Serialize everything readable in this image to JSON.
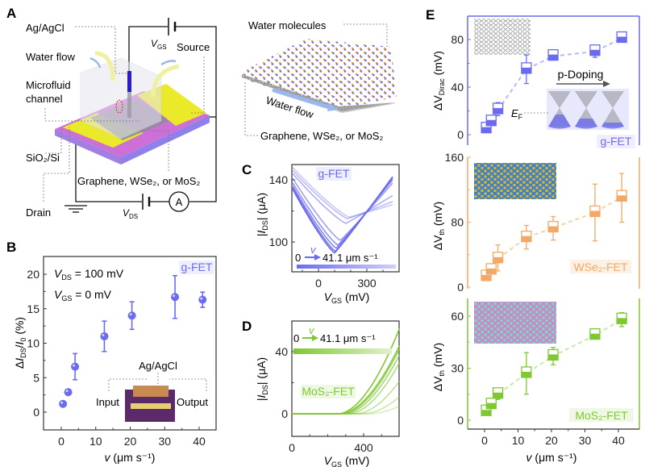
{
  "panels": {
    "A": {
      "letter": "A",
      "labels": {
        "agagcl": "Ag/AgCl",
        "water_flow": "Water flow",
        "microfluid": "Microfluid",
        "channel": "channel",
        "sio2": "SiO₂/Si",
        "drain": "Drain",
        "source": "Source",
        "vgs_v": "V",
        "vgs_sub": "GS",
        "vds_v": "V",
        "vds_sub": "DS",
        "material": "Graphene, WSe₂, or MoS₂",
        "ammeter": "A",
        "water_molecules": "Water molecules",
        "water_flow_2": "Water flow",
        "material_2": "Graphene, WSe₂, or MoS₂"
      }
    }
  },
  "colors": {
    "g_fet": "#6b6bef",
    "wse2_fet": "#f2a866",
    "mos2_fet": "#7ec832",
    "axis": "#333333"
  },
  "chart_data": [
    {
      "id": "B",
      "letter": "B",
      "type": "scatter",
      "title": "",
      "xlabel_v": "v",
      "xlabel_rest": " (μm s⁻¹)",
      "ylabel": "ΔI_DS/I_0 (%)",
      "ylabel_parts": [
        "Δ",
        "I",
        "DS",
        "/",
        "I",
        "0",
        " (%)"
      ],
      "xlim": [
        -4,
        45
      ],
      "ylim": [
        -2.5,
        22.5
      ],
      "xticks": [
        0,
        10,
        20,
        30,
        40
      ],
      "yticks": [
        0,
        5,
        10,
        15,
        20
      ],
      "legend": "g-FET",
      "annotations": {
        "vds_label": "V",
        "vds_sub": "DS",
        "vds_val": " = 100 mV",
        "vgs_label": "V",
        "vgs_sub": "GS",
        "vgs_val": " = 0 mV",
        "inset_agagcl": "Ag/AgCl",
        "inset_input": "Input",
        "inset_output": "Output"
      },
      "series": [
        {
          "name": "g-FET",
          "x": [
            0.5,
            2,
            4,
            12.5,
            20.5,
            33,
            41
          ],
          "y": [
            1.2,
            2.9,
            6.6,
            11.0,
            14.0,
            16.7,
            16.3
          ],
          "err": [
            0,
            0,
            1.9,
            2.2,
            2.0,
            3.1,
            1.1
          ]
        }
      ]
    },
    {
      "id": "C",
      "letter": "C",
      "type": "line",
      "xlabel": "V_GS (mV)",
      "ylabel": "|I_DS| (μA)",
      "xlim": [
        -160,
        460
      ],
      "ylim": [
        77,
        150
      ],
      "xticks": [
        0,
        300
      ],
      "yticks": [
        100,
        140
      ],
      "legend": "g-FET",
      "gradient_label": {
        "start": "0",
        "v": "v",
        "end": "41.1 μm s⁻¹"
      },
      "series_note": "Transfer curves from v = 0 (dark) to 41.1 μm s⁻¹ (light)",
      "series": [
        {
          "name": "v1",
          "dirac_x": 100,
          "min_y": 93,
          "left_y": 134,
          "right_y": 142
        },
        {
          "name": "v2",
          "dirac_x": 105,
          "min_y": 94,
          "left_y": 135,
          "right_y": 142
        },
        {
          "name": "v3",
          "dirac_x": 110,
          "min_y": 96,
          "left_y": 136,
          "right_y": 141
        },
        {
          "name": "v4",
          "dirac_x": 120,
          "min_y": 98,
          "left_y": 138,
          "right_y": 140
        },
        {
          "name": "v5",
          "dirac_x": 135,
          "min_y": 101,
          "left_y": 141,
          "right_y": 138
        },
        {
          "name": "v6",
          "dirac_x": 170,
          "min_y": 112,
          "left_y": 144,
          "right_y": 130
        },
        {
          "name": "v7",
          "dirac_x": 180,
          "min_y": 115,
          "left_y": 146,
          "right_y": 126
        },
        {
          "name": "v8",
          "dirac_x": 190,
          "min_y": 116,
          "left_y": 148,
          "right_y": 124
        }
      ]
    },
    {
      "id": "D",
      "letter": "D",
      "type": "line",
      "xlabel": "V_GS (mV)",
      "ylabel": "|I_DS| (μA)",
      "xlim": [
        0,
        600
      ],
      "ylim": [
        -10,
        57
      ],
      "xticks": [
        0,
        400
      ],
      "yticks": [
        0,
        40
      ],
      "legend": "MoS₂-FET",
      "gradient_label": {
        "start": "0",
        "v": "v",
        "end": "41.1 μm s⁻¹"
      },
      "series_note": "Transfer curves from v = 0 (dark) to 41.1 μm s⁻¹ (light)",
      "series": [
        {
          "name": "v1",
          "vth": 260,
          "i_max": 55
        },
        {
          "name": "v2",
          "vth": 270,
          "i_max": 44
        },
        {
          "name": "v3",
          "vth": 280,
          "i_max": 42
        },
        {
          "name": "v4",
          "vth": 295,
          "i_max": 38
        },
        {
          "name": "v5",
          "vth": 320,
          "i_max": 33
        },
        {
          "name": "v6",
          "vth": 360,
          "i_max": 21
        },
        {
          "name": "v7",
          "vth": 400,
          "i_max": 11
        },
        {
          "name": "v8",
          "vth": 430,
          "i_max": 5
        }
      ]
    },
    {
      "id": "E1",
      "letter": "E",
      "type": "box",
      "ylabel_parts": [
        "ΔV",
        "Dirac",
        " (mV)"
      ],
      "xlim": [
        -4,
        45
      ],
      "ylim": [
        -5,
        100
      ],
      "yticks": [
        0,
        40,
        80
      ],
      "legend": "g-FET",
      "inset_labels": {
        "p_doping": "p-Doping",
        "ef": "E",
        "ef_sub": "F"
      },
      "series": [
        {
          "name": "g-FET",
          "x": [
            0.5,
            2,
            4,
            12.5,
            20.5,
            33,
            41
          ],
          "y": [
            5,
            11,
            21,
            55,
            66,
            70,
            81
          ],
          "lo": [
            3,
            8,
            16,
            43,
            64,
            65,
            79
          ],
          "hi": [
            8,
            15,
            27,
            67,
            69,
            75,
            84
          ]
        }
      ]
    },
    {
      "id": "E2",
      "type": "box",
      "ylabel_parts": [
        "ΔV",
        "th",
        " (mV)"
      ],
      "xlim": [
        -4,
        45
      ],
      "ylim": [
        -8,
        168
      ],
      "yticks": [
        0,
        80,
        160
      ],
      "legend": "WSe₂-FET",
      "series": [
        {
          "name": "WSe₂-FET",
          "x": [
            0.5,
            2,
            4,
            12.5,
            20.5,
            33,
            41
          ],
          "y": [
            13,
            21,
            35,
            61,
            73,
            92,
            111
          ],
          "lo": [
            9,
            17,
            20,
            47,
            58,
            57,
            80
          ],
          "hi": [
            17,
            25,
            52,
            76,
            87,
            127,
            140
          ]
        }
      ]
    },
    {
      "id": "E3",
      "type": "box",
      "xlabel_v": "v",
      "xlabel_rest": " (μm s⁻¹)",
      "ylabel_parts": [
        "ΔV",
        "th",
        " (mV)"
      ],
      "xlim": [
        -4,
        45
      ],
      "ylim": [
        -5,
        70
      ],
      "xticks": [
        0,
        10,
        20,
        30,
        40
      ],
      "yticks": [
        0,
        30,
        60
      ],
      "legend": "MoS₂-FET",
      "series": [
        {
          "name": "MoS₂-FET",
          "x": [
            0.5,
            2,
            4,
            12.5,
            20.5,
            33,
            41
          ],
          "y": [
            5,
            9,
            15,
            27,
            37,
            49,
            58
          ],
          "lo": [
            3,
            7,
            12,
            15,
            32,
            48,
            54
          ],
          "hi": [
            7,
            11,
            18,
            39,
            42,
            51,
            62
          ]
        }
      ]
    }
  ]
}
